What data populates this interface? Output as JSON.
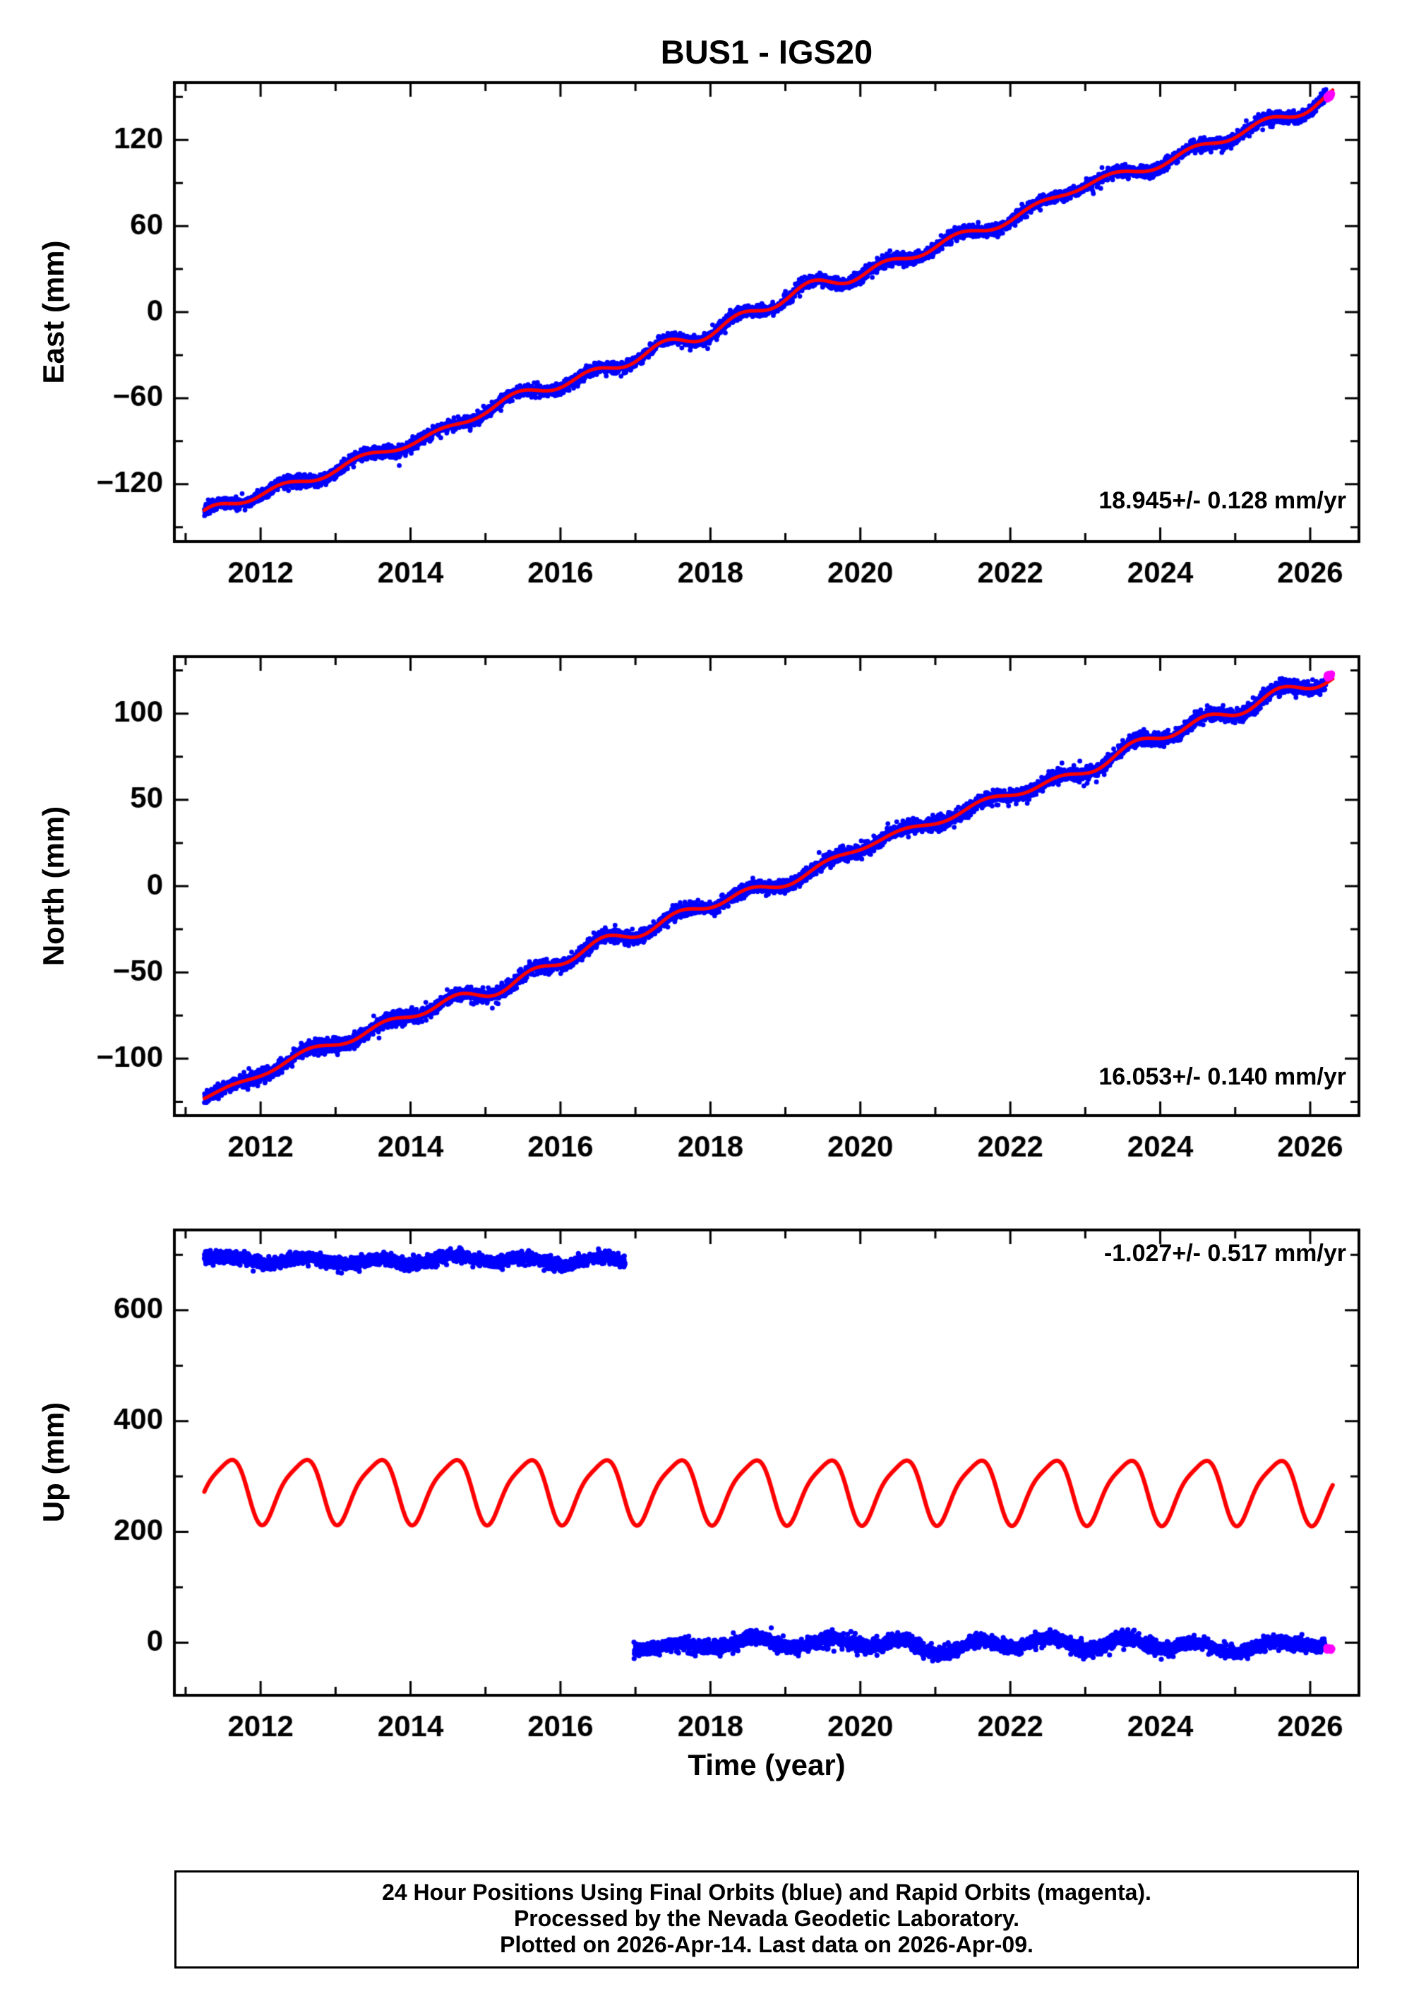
{
  "page": {
    "title": "BUS1 - IGS20"
  },
  "colors": {
    "final_orbits": "#0000ff",
    "rapid_orbits": "#ff00ff",
    "model_fit": "#ff0000",
    "frame": "#000000",
    "background": "#ffffff"
  },
  "xaxis": {
    "label": "Time (year)",
    "min": 2010.85,
    "max": 2026.65,
    "tick_labels": [
      2012,
      2014,
      2016,
      2018,
      2020,
      2022,
      2024,
      2026
    ],
    "minor_tick_step": 1
  },
  "caption": {
    "line1": "24 Hour Positions Using Final Orbits (blue) and Rapid Orbits (magenta).",
    "line2": "Processed by the Nevada Geodetic Laboratory.",
    "line3": "Plotted on 2026-Apr-14. Last data on 2026-Apr-09."
  },
  "chart_data": [
    {
      "type": "scatter",
      "name": "east",
      "ylabel": "East (mm)",
      "rate_mm_per_yr": 18.945,
      "rate_sigma_mm_per_yr": 0.128,
      "rate_label": "18.945+/- 0.128 mm/yr",
      "ylim": [
        -160,
        160
      ],
      "yticks": [
        -120,
        -60,
        0,
        60,
        120
      ],
      "ytick_minor_step": 30,
      "series": [
        {
          "name": "final-orbit-positions",
          "style": "dots",
          "color": "#0000ff",
          "marker_radius": 3.4,
          "x_start": 2011.25,
          "x_end": 2026.21,
          "value_start": -143,
          "value_end": 148,
          "seasonal_amp": 3.5,
          "seasonal_phase": 0.12,
          "wander_amp": 3,
          "wander_seed": 11,
          "noise": 2.1,
          "seed": 101,
          "extra_points": [
            [
              2013.85,
              -107
            ]
          ]
        },
        {
          "name": "model-fit",
          "style": "line",
          "color": "#ff0000",
          "line_width": 5,
          "x_start": 2011.25,
          "x_end": 2026.3,
          "value_start": -143,
          "value_end": 150,
          "seasonal_amp": 3.2,
          "seasonal_phase": 0.12,
          "wander_amp": 3,
          "wander_seed": 11
        },
        {
          "name": "rapid-orbit-positions",
          "style": "dots",
          "color": "#ff00ff",
          "marker_radius": 4.6,
          "x_start": 2026.22,
          "x_end": 2026.29,
          "value_start": 149.5,
          "value_end": 151,
          "noise": 0.8,
          "seed": 77
        }
      ]
    },
    {
      "type": "scatter",
      "name": "north",
      "ylabel": "North (mm)",
      "rate_mm_per_yr": 16.053,
      "rate_sigma_mm_per_yr": 0.14,
      "rate_label": "16.053+/- 0.140 mm/yr",
      "ylim": [
        -133,
        133
      ],
      "yticks": [
        -100,
        -50,
        0,
        50,
        100
      ],
      "ytick_minor_step": 25,
      "series": [
        {
          "name": "final-orbit-positions",
          "style": "dots",
          "color": "#0000ff",
          "marker_radius": 3.4,
          "x_start": 2011.25,
          "x_end": 2026.21,
          "value_start": -120,
          "value_end": 121,
          "seasonal_amp": 2.6,
          "seasonal_phase": 0.35,
          "wander_amp": 2.6,
          "wander_seed": 23,
          "noise": 2.0,
          "seed": 211
        },
        {
          "name": "model-fit",
          "style": "line",
          "color": "#ff0000",
          "line_width": 5,
          "x_start": 2011.25,
          "x_end": 2026.3,
          "value_start": -120,
          "value_end": 122.5,
          "seasonal_amp": 2.4,
          "seasonal_phase": 0.35,
          "wander_amp": 2.6,
          "wander_seed": 23
        },
        {
          "name": "rapid-orbit-positions",
          "style": "dots",
          "color": "#ff00ff",
          "marker_radius": 4.6,
          "x_start": 2026.22,
          "x_end": 2026.29,
          "value_start": 121.5,
          "value_end": 122.5,
          "noise": 0.8,
          "seed": 78
        }
      ]
    },
    {
      "type": "scatter",
      "name": "up",
      "ylabel": "Up (mm)",
      "rate_mm_per_yr": -1.027,
      "rate_sigma_mm_per_yr": 0.517,
      "rate_label": "-1.027+/- 0.517 mm/yr",
      "ylim": [
        -95,
        745
      ],
      "yticks": [
        0,
        200,
        400,
        600
      ],
      "ytick_minor_step": 100,
      "series": [
        {
          "name": "final-orbit-positions-pre-offset",
          "style": "dots",
          "color": "#0000ff",
          "marker_radius": 3.6,
          "x_start": 2011.25,
          "x_end": 2016.86,
          "value_start": 691,
          "value_end": 689,
          "seasonal_amp": 5,
          "seasonal_phase": 0.3,
          "wander_amp": 5,
          "wander_seed": 31,
          "noise": 5.5,
          "seed": 301
        },
        {
          "name": "final-orbit-positions-post-offset",
          "style": "dots",
          "color": "#0000ff",
          "marker_radius": 3.6,
          "x_start": 2016.98,
          "x_end": 2026.2,
          "value_start": -2,
          "value_end": -5,
          "seasonal_amp": 8,
          "seasonal_phase": 0.3,
          "wander_amp": 7,
          "wander_seed": 37,
          "noise": 6,
          "seed": 307
        },
        {
          "name": "model-fit-seasonal",
          "style": "line",
          "color": "#ff0000",
          "line_width": 6,
          "x_start": 2011.25,
          "x_end": 2026.3,
          "value_start": 278,
          "value_end": 276,
          "seasonal_amp": 56,
          "seasonal_phase": 0.3,
          "semiannual_amp": 12,
          "semiannual_phase": -1.4
        },
        {
          "name": "rapid-orbit-positions",
          "style": "dots",
          "color": "#ff00ff",
          "marker_radius": 5,
          "x_start": 2026.22,
          "x_end": 2026.29,
          "value_start": -13,
          "value_end": -11,
          "noise": 1.5,
          "seed": 79
        }
      ]
    }
  ]
}
